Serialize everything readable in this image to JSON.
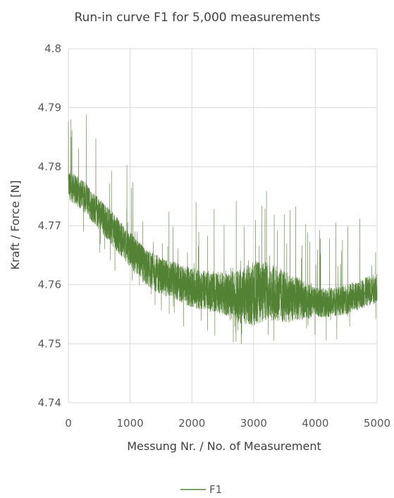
{
  "chart_data": {
    "type": "line",
    "title": "Run-in curve F1 for 5,000 measurements",
    "xlabel": "Messung Nr. / No. of Measurement",
    "ylabel": "Kraft / Force [N]",
    "xlim": [
      0,
      5000
    ],
    "ylim": [
      4.74,
      4.8
    ],
    "x_ticks": [
      "0",
      "1000",
      "2000",
      "3000",
      "4000",
      "5000"
    ],
    "y_ticks": [
      "4.74",
      "4.75",
      "4.76",
      "4.77",
      "4.78",
      "4.79",
      "4.8"
    ],
    "grid": true,
    "legend_position": "bottom",
    "series": [
      {
        "name": "F1",
        "color": "#548235",
        "trend_x": [
          0,
          250,
          500,
          750,
          1000,
          1250,
          1500,
          1750,
          2000,
          2250,
          2500,
          2750,
          3000,
          3250,
          3500,
          3750,
          4000,
          4250,
          4500,
          4750,
          5000
        ],
        "trend_y": [
          4.777,
          4.775,
          4.772,
          4.769,
          4.766,
          4.763,
          4.7615,
          4.7605,
          4.7595,
          4.759,
          4.7585,
          4.758,
          4.7585,
          4.759,
          4.758,
          4.7575,
          4.757,
          4.757,
          4.7575,
          4.7585,
          4.7595
        ],
        "noise_band_x": [
          0,
          1000,
          2500,
          3000,
          3500,
          4000,
          5000
        ],
        "noise_band_y": [
          0.0025,
          0.003,
          0.0035,
          0.0055,
          0.0045,
          0.0025,
          0.0025
        ],
        "max_y": 4.788,
        "min_y": 4.75
      }
    ]
  }
}
